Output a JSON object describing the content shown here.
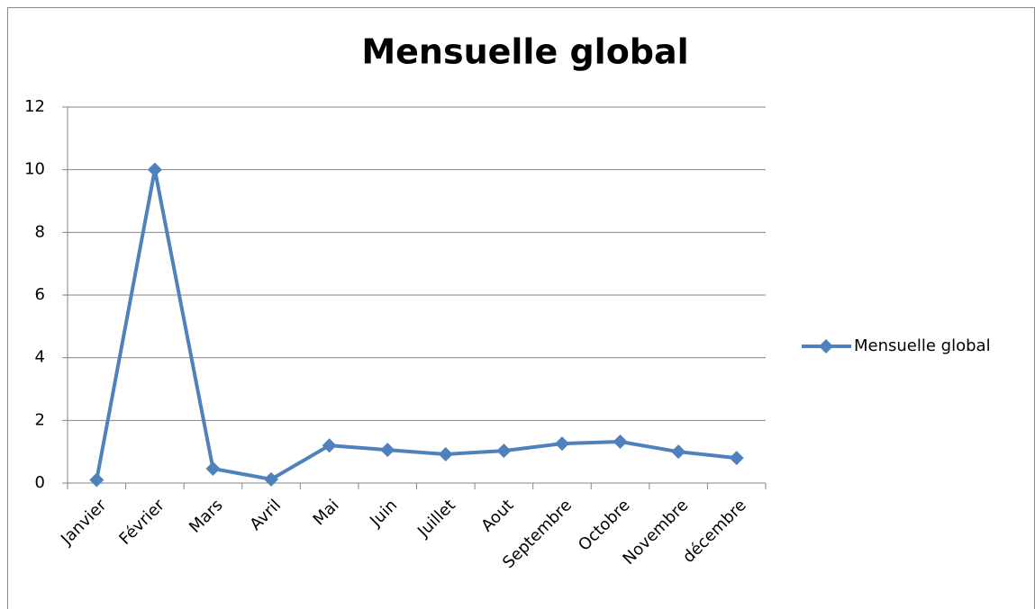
{
  "chart_data": {
    "type": "line",
    "title": "Mensuelle global",
    "categories": [
      "Janvier",
      "Février",
      "Mars",
      "Avril",
      "Mai",
      "Juin",
      "Juillet",
      "Aout",
      "Septembre",
      "Octobre",
      "Novembre",
      "décembre"
    ],
    "series": [
      {
        "name": "Mensuelle global",
        "color": "#4f81bd",
        "values": [
          0.1,
          10,
          0.46,
          0.12,
          1.2,
          1.06,
          0.92,
          1.03,
          1.26,
          1.32,
          1.0,
          0.8
        ]
      }
    ],
    "ylim": [
      0,
      12
    ],
    "yticks": [
      0,
      2,
      4,
      6,
      8,
      10,
      12
    ],
    "grid": true,
    "legend": "right"
  }
}
